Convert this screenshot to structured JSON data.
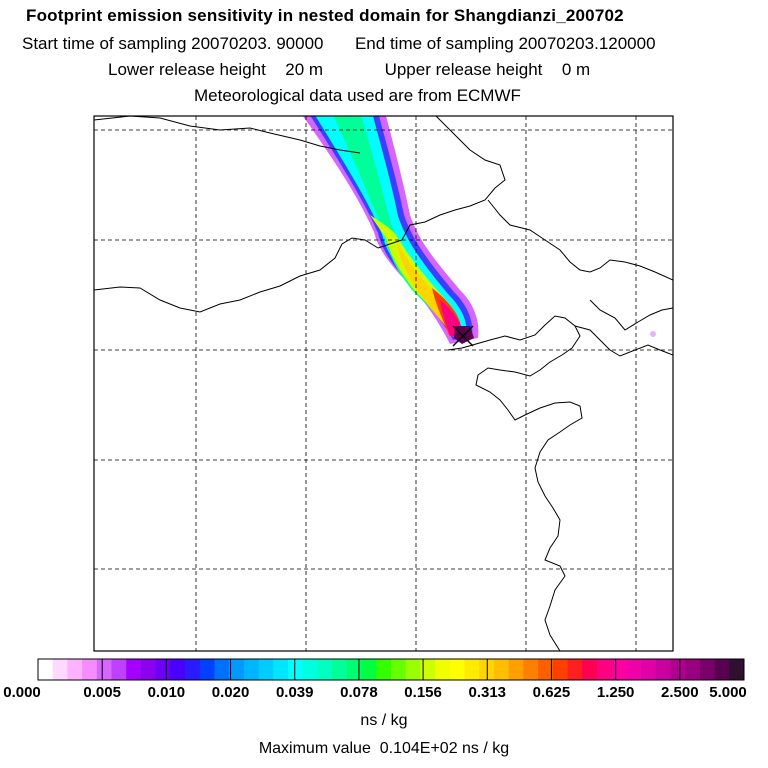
{
  "header": {
    "title": "Footprint emission sensitivity in nested domain for Shangdianzi_200702",
    "start_label": "Start time of sampling",
    "start_value": "20070203. 90000",
    "end_label": "End time of sampling",
    "end_value": "20070203.120000",
    "lower_label": "Lower release height",
    "lower_value": "20 m",
    "upper_label": "Upper release height",
    "upper_value": "0 m",
    "met_text": "Meteorological data used are from ECMWF"
  },
  "map": {
    "plume_core_color": "#202020",
    "release_marker": "x-cross-marker"
  },
  "legend": {
    "colors": [
      "#ffffff",
      "#ffd9ff",
      "#ffb3ff",
      "#f58cff",
      "#d766ff",
      "#c040ff",
      "#a300ff",
      "#8c00f0",
      "#6b00f5",
      "#4a00ff",
      "#2a1aff",
      "#0040ff",
      "#0070ff",
      "#0099ff",
      "#00b5ff",
      "#00ccff",
      "#00e6ff",
      "#00ffff",
      "#00ffe0",
      "#00ffc0",
      "#00ff99",
      "#00ff70",
      "#00ff40",
      "#33ff00",
      "#66ff00",
      "#99ff00",
      "#ccff00",
      "#f0ff00",
      "#ffff00",
      "#ffea00",
      "#ffd400",
      "#ffbf00",
      "#ff9f00",
      "#ff7f00",
      "#ff5f00",
      "#ff3f00",
      "#ff1f1f",
      "#ff0055",
      "#ff0080",
      "#ff00a0",
      "#f000a8",
      "#e000a8",
      "#c800a0",
      "#b00090",
      "#980080",
      "#7a006a",
      "#5a0050",
      "#301030"
    ],
    "ticks": [
      "0.000",
      "0.005",
      "0.010",
      "0.020",
      "0.039",
      "0.078",
      "0.156",
      "0.313",
      "0.625",
      "1.250",
      "2.500",
      "5.000"
    ],
    "unit": "ns / kg",
    "max_label": "Maximum value",
    "max_value": "0.104E+02 ns / kg"
  }
}
